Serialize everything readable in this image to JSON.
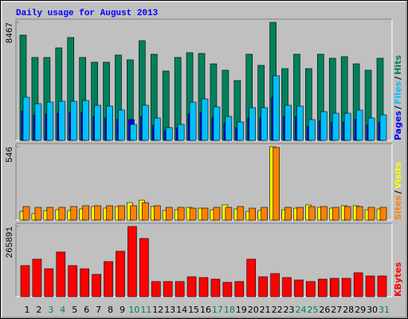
{
  "chart_data": [
    {
      "type": "bar",
      "title": "Daily usage for August 2013",
      "title_color": "#0000FF",
      "categories": [
        "1",
        "2",
        "3",
        "4",
        "5",
        "6",
        "7",
        "8",
        "9",
        "10",
        "11",
        "12",
        "13",
        "14",
        "15",
        "16",
        "17",
        "18",
        "19",
        "20",
        "21",
        "22",
        "23",
        "24",
        "25",
        "26",
        "27",
        "28",
        "29",
        "30",
        "31"
      ],
      "category_colors": [
        "#000000",
        "#000000",
        "#00805C",
        "#00805C",
        "#000000",
        "#000000",
        "#000000",
        "#000000",
        "#000000",
        "#00805C",
        "#00805C",
        "#000000",
        "#000000",
        "#000000",
        "#000000",
        "#000000",
        "#00805C",
        "#00805C",
        "#000000",
        "#000000",
        "#000000",
        "#000000",
        "#000000",
        "#00805C",
        "#00805C",
        "#000000",
        "#000000",
        "#000000",
        "#000000",
        "#000000",
        "#00805C"
      ],
      "legend_separator": "/",
      "series": [
        {
          "name": "Hits",
          "color": "#00805C",
          "values": [
            7552,
            5950,
            5950,
            6636,
            7380,
            5950,
            5607,
            5607,
            6121,
            5778,
            7151,
            6179,
            4977,
            5950,
            6293,
            6236,
            5492,
            5034,
            4291,
            6179,
            5378,
            8467,
            5149,
            6179,
            5149,
            6179,
            5893,
            6007,
            5492,
            5034,
            5893
          ]
        },
        {
          "name": "Files",
          "color": "#00C0FF",
          "values": [
            3089,
            2632,
            2746,
            2803,
            2803,
            2860,
            2517,
            2460,
            2174,
            1144,
            2517,
            1602,
            915,
            1144,
            2746,
            2975,
            2403,
            1716,
            1316,
            2346,
            2346,
            4634,
            2517,
            2460,
            1487,
            2060,
            1945,
            1945,
            2174,
            1602,
            1831
          ]
        },
        {
          "name": "Pages",
          "color": "#0000FF",
          "values": [
            2100,
            1800,
            1900,
            1950,
            2000,
            2000,
            1700,
            1600,
            1500,
            1487,
            1700,
            1100,
            700,
            900,
            1900,
            2000,
            1600,
            1200,
            900,
            1600,
            1600,
            3089,
            1700,
            1700,
            1000,
            1400,
            1300,
            1300,
            1500,
            1100,
            1300
          ]
        }
      ],
      "ylim": [
        0,
        8467
      ],
      "yticks": [
        8467
      ]
    },
    {
      "type": "bar",
      "legend_separator": "/",
      "series": [
        {
          "name": "Visits",
          "color": "#FFFF00",
          "values": [
            65,
            48,
            71,
            77,
            71,
            83,
            101,
            89,
            101,
            130,
            148,
            101,
            71,
            77,
            95,
            89,
            77,
            113,
            83,
            65,
            71,
            546,
            77,
            89,
            113,
            95,
            89,
            107,
            107,
            77,
            83
          ]
        },
        {
          "name": "Sites",
          "color": "#FF8000",
          "values": [
            101,
            95,
            95,
            95,
            101,
            107,
            107,
            107,
            107,
            107,
            130,
            107,
            95,
            95,
            89,
            89,
            95,
            95,
            101,
            89,
            95,
            540,
            95,
            95,
            101,
            101,
            95,
            101,
            101,
            95,
            95
          ]
        }
      ],
      "ylim": [
        0,
        546
      ],
      "yticks": [
        546
      ]
    },
    {
      "type": "bar",
      "series": [
        {
          "name": "KBytes",
          "color": "#FF0000",
          "values": [
            117840,
            142010,
            105750,
            169200,
            117840,
            105750,
            84600,
            132950,
            172230,
            265891,
            220570,
            57410,
            57410,
            57410,
            75540,
            72520,
            66470,
            54390,
            57410,
            142010,
            75540,
            87620,
            72520,
            63450,
            57410,
            66470,
            69500,
            69500,
            90650,
            78560,
            78560
          ]
        }
      ],
      "ylim": [
        0,
        265891
      ],
      "yticks": [
        265891
      ]
    }
  ]
}
